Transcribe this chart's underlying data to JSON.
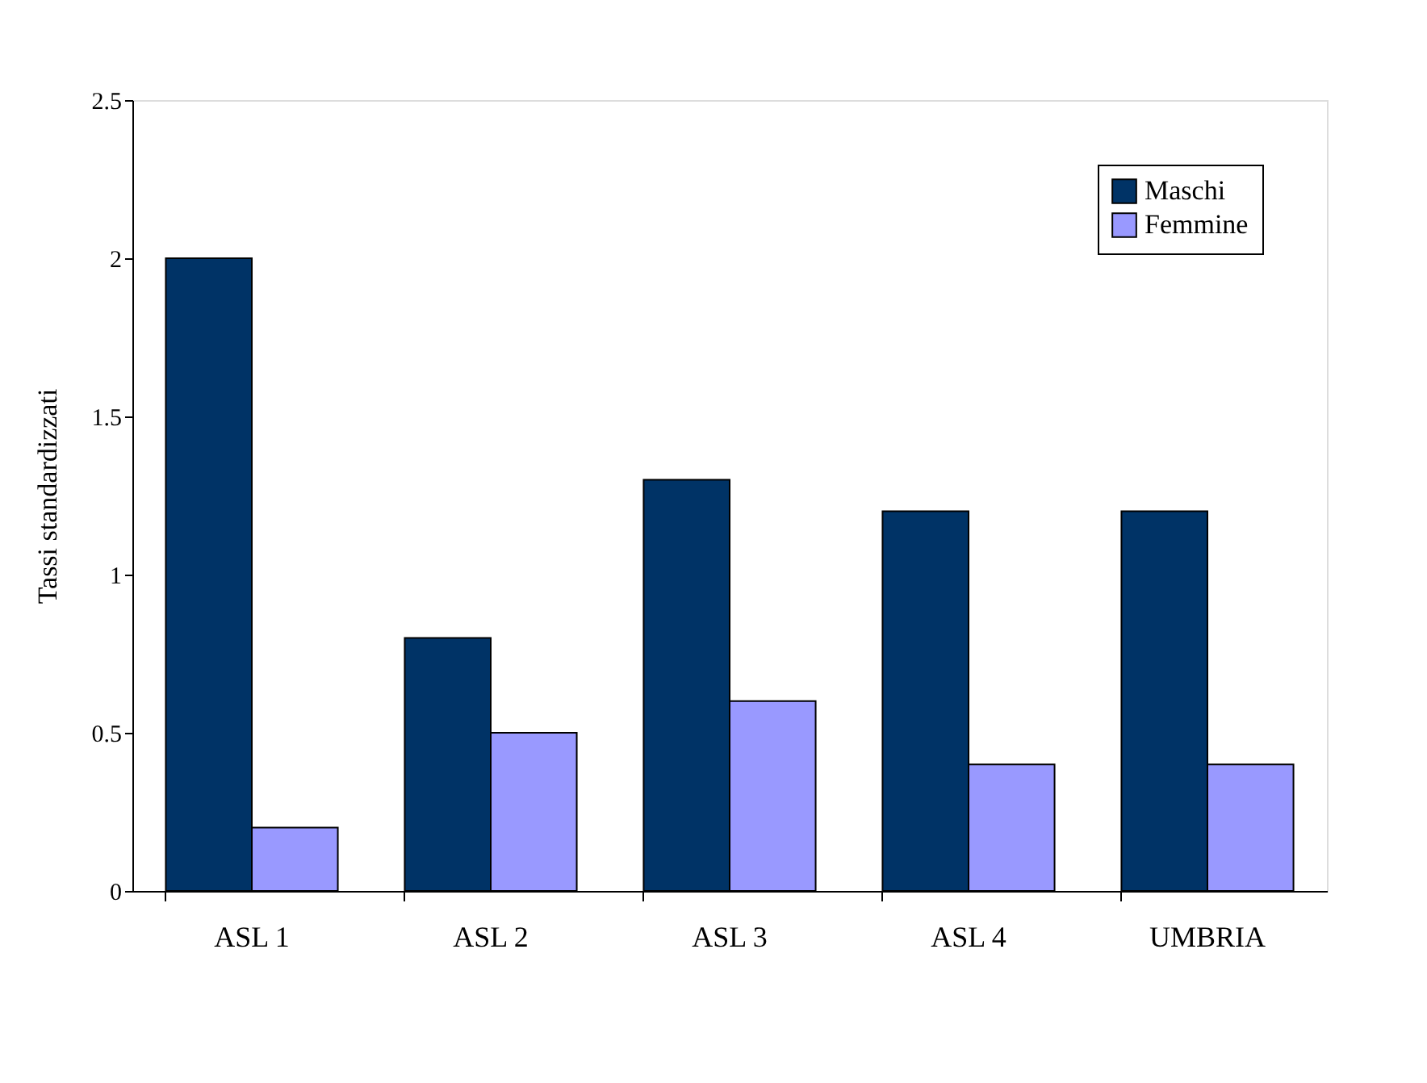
{
  "chart_data": {
    "type": "bar",
    "ylabel": "Tassi standardizzati",
    "categories": [
      "ASL 1",
      "ASL 2",
      "ASL 3",
      "ASL 4",
      "UMBRIA"
    ],
    "series": [
      {
        "name": "Maschi",
        "color": "#003366",
        "values": [
          2.0,
          0.8,
          1.3,
          1.2,
          1.2
        ]
      },
      {
        "name": "Femmine",
        "color": "#9999ff",
        "values": [
          0.2,
          0.5,
          0.6,
          0.4,
          0.4
        ]
      }
    ],
    "ylim": [
      0,
      2.5
    ],
    "yticks": [
      0,
      0.5,
      1,
      1.5,
      2,
      2.5
    ],
    "grid": false,
    "legend": "top right"
  }
}
